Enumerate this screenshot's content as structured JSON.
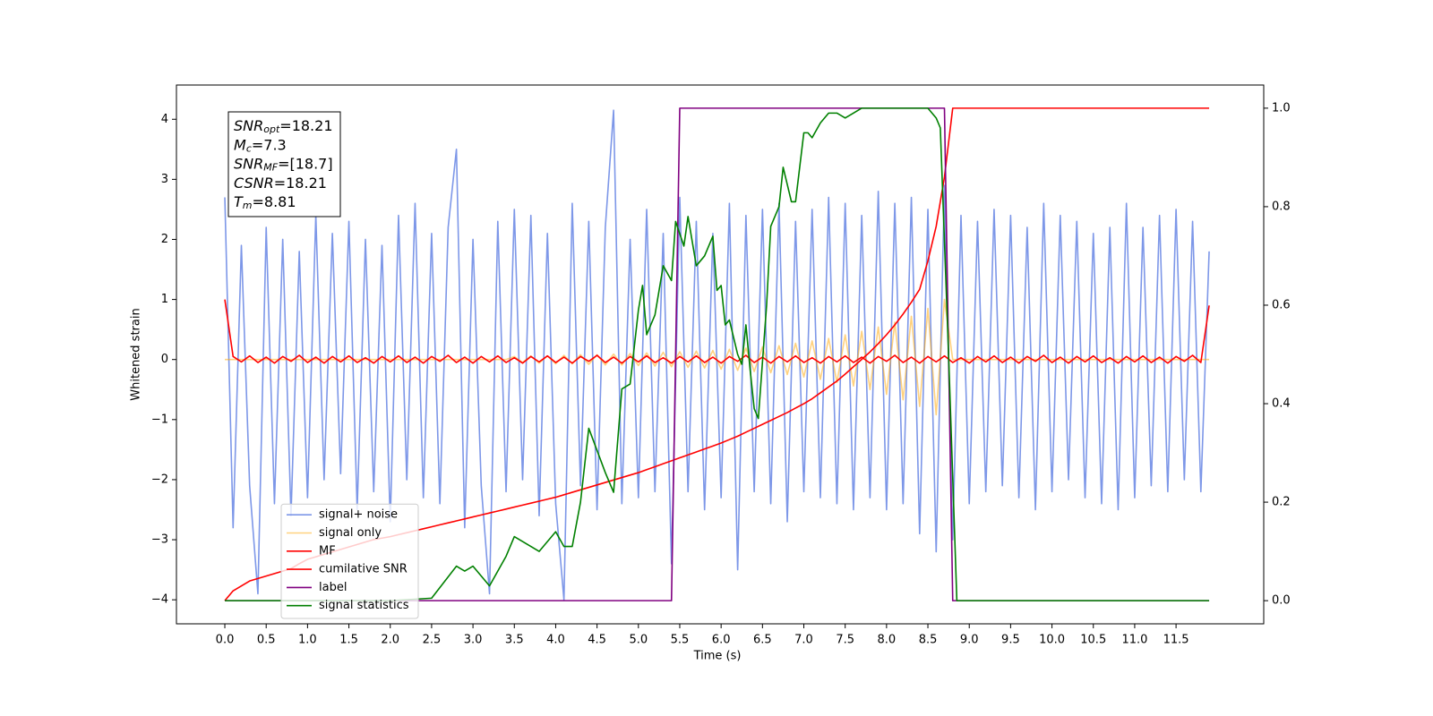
{
  "chart_data": {
    "type": "line",
    "xlabel": "Time (s)",
    "ylabel": "Whitened strain",
    "x": [
      0,
      0.1,
      0.2,
      0.3,
      0.4,
      0.5,
      0.6,
      0.7,
      0.8,
      0.9,
      1,
      1.1,
      1.2,
      1.3,
      1.4,
      1.5,
      1.6,
      1.7,
      1.8,
      1.9,
      2,
      2.1,
      2.2,
      2.3,
      2.4,
      2.5,
      2.6,
      2.7,
      2.8,
      2.9,
      3,
      3.1,
      3.2,
      3.3,
      3.4,
      3.5,
      3.6,
      3.7,
      3.8,
      3.9,
      4,
      4.1,
      4.2,
      4.3,
      4.4,
      4.5,
      4.6,
      4.7,
      4.8,
      4.9,
      5,
      5.1,
      5.2,
      5.3,
      5.4,
      5.5,
      5.6,
      5.7,
      5.8,
      5.9,
      6,
      6.1,
      6.2,
      6.3,
      6.4,
      6.5,
      6.6,
      6.7,
      6.8,
      6.9,
      7,
      7.1,
      7.2,
      7.3,
      7.4,
      7.5,
      7.6,
      7.7,
      7.8,
      7.9,
      8,
      8.1,
      8.2,
      8.3,
      8.4,
      8.5,
      8.6,
      8.7,
      8.8,
      8.9,
      9,
      9.1,
      9.2,
      9.3,
      9.4,
      9.5,
      9.6,
      9.7,
      9.8,
      9.9,
      10,
      10.1,
      10.2,
      10.3,
      10.4,
      10.5,
      10.6,
      10.7,
      10.8,
      10.9,
      11,
      11.1,
      11.2,
      11.3,
      11.4,
      11.5,
      11.6,
      11.7,
      11.8,
      11.9
    ],
    "series": [
      {
        "name": "signal+ noise",
        "color": "#6f8ce6",
        "alpha": 0.9,
        "values": [
          2.7,
          -2.8,
          1.9,
          -2.1,
          -3.9,
          2.2,
          -2.4,
          2.0,
          -2.6,
          1.8,
          -2.3,
          2.4,
          -2.0,
          2.1,
          -1.9,
          2.3,
          -2.5,
          2.0,
          -2.2,
          1.9,
          -2.7,
          2.4,
          -2.0,
          2.6,
          -2.3,
          2.1,
          -2.4,
          2.2,
          3.5,
          -2.8,
          2.0,
          -2.1,
          -3.9,
          2.3,
          -2.2,
          2.5,
          -2.0,
          2.4,
          -2.6,
          2.1,
          -2.4,
          -4.0,
          2.6,
          -2.1,
          2.3,
          -2.5,
          2.2,
          4.15,
          -2.4,
          2.0,
          -2.3,
          2.5,
          -2.2,
          2.1,
          -3.4,
          2.7,
          -2.2,
          2.3,
          -2.5,
          2.1,
          -2.3,
          2.6,
          -3.5,
          2.4,
          -2.2,
          2.5,
          -2.4,
          2.6,
          -2.7,
          2.3,
          -2.2,
          2.5,
          -2.3,
          2.7,
          -2.4,
          2.6,
          -2.5,
          2.4,
          -2.3,
          2.8,
          -2.5,
          2.6,
          -2.4,
          2.7,
          -2.9,
          2.5,
          -3.2,
          2.9,
          -3.0,
          2.4,
          -2.4,
          2.3,
          -2.2,
          2.5,
          -2.1,
          2.4,
          -2.3,
          2.2,
          -2.5,
          2.6,
          -2.2,
          2.4,
          -2.0,
          2.3,
          -2.3,
          2.1,
          -2.4,
          2.2,
          -2.5,
          2.6,
          -2.3,
          2.2,
          -2.1,
          2.4,
          -2.2,
          2.5,
          -2.0,
          2.3,
          -2.2,
          1.8
        ]
      },
      {
        "name": "signal only",
        "color": "#ffa500",
        "alpha": 0.5,
        "values": [
          0,
          0,
          0,
          0,
          0,
          0,
          0,
          0,
          0,
          0,
          0,
          0,
          0,
          0,
          0,
          0,
          0,
          0,
          0,
          0,
          0,
          0,
          0,
          0,
          0,
          0,
          0,
          0,
          0,
          0,
          0,
          0,
          0,
          0,
          0,
          0.05,
          -0.05,
          0.06,
          -0.06,
          0.06,
          -0.07,
          0.07,
          -0.07,
          0.08,
          -0.08,
          0.08,
          -0.09,
          0.09,
          -0.09,
          0.1,
          -0.1,
          0.11,
          -0.11,
          0.12,
          -0.12,
          0.13,
          -0.13,
          0.14,
          -0.14,
          0.15,
          -0.16,
          0.17,
          -0.18,
          0.19,
          -0.2,
          0.21,
          -0.22,
          0.23,
          -0.25,
          0.27,
          -0.29,
          0.31,
          -0.33,
          0.35,
          -0.38,
          0.41,
          -0.44,
          0.47,
          -0.5,
          0.54,
          -0.58,
          0.62,
          -0.67,
          0.72,
          -0.78,
          0.85,
          -0.92,
          1.0,
          0,
          0,
          0,
          0,
          0,
          0,
          0,
          0,
          0,
          0,
          0,
          0,
          0,
          0,
          0,
          0,
          0,
          0,
          0,
          0,
          0,
          0,
          0,
          0,
          0,
          0,
          0,
          0,
          0,
          0,
          0,
          0
        ]
      },
      {
        "name": "MF",
        "color": "#ff0000",
        "alpha": 1,
        "values": [
          1.0,
          0.05,
          -0.04,
          0.06,
          -0.05,
          0.04,
          -0.06,
          0.05,
          -0.03,
          0.07,
          -0.05,
          0.04,
          -0.06,
          0.05,
          -0.04,
          0.06,
          -0.05,
          0.03,
          -0.06,
          0.05,
          -0.04,
          0.06,
          -0.05,
          0.04,
          -0.06,
          0.05,
          -0.03,
          0.07,
          -0.05,
          0.04,
          -0.06,
          0.05,
          -0.04,
          0.06,
          -0.05,
          0.03,
          -0.06,
          0.05,
          -0.04,
          0.06,
          -0.05,
          0.04,
          -0.06,
          0.05,
          -0.03,
          0.07,
          -0.05,
          0.04,
          -0.06,
          0.05,
          -0.04,
          0.06,
          -0.05,
          0.03,
          -0.06,
          0.05,
          -0.04,
          0.06,
          -0.05,
          0.04,
          -0.06,
          0.05,
          -0.03,
          0.07,
          -0.05,
          0.04,
          -0.06,
          0.05,
          -0.04,
          0.06,
          -0.05,
          0.03,
          -0.06,
          0.05,
          -0.04,
          0.06,
          -0.05,
          0.04,
          -0.06,
          0.05,
          -0.03,
          0.07,
          -0.05,
          0.04,
          -0.06,
          0.05,
          -0.04,
          0.06,
          -0.05,
          0.03,
          -0.06,
          0.05,
          -0.04,
          0.06,
          -0.05,
          0.04,
          -0.06,
          0.05,
          -0.03,
          0.07,
          -0.05,
          0.04,
          -0.06,
          0.05,
          -0.04,
          0.06,
          -0.05,
          0.03,
          -0.06,
          0.05,
          -0.04,
          0.06,
          -0.05,
          0.04,
          -0.06,
          0.05,
          -0.03,
          0.07,
          -0.05,
          0.9
        ]
      },
      {
        "name": "cumilative SNR",
        "color": "#ff0000",
        "alpha": 1,
        "axis": "y2",
        "values": [
          0.0,
          0.02,
          0.03,
          0.04,
          0.045,
          0.05,
          0.055,
          0.06,
          0.065,
          0.075,
          0.084,
          0.089,
          0.094,
          0.099,
          0.104,
          0.109,
          0.114,
          0.119,
          0.124,
          0.127,
          0.13,
          0.134,
          0.138,
          0.142,
          0.146,
          0.15,
          0.154,
          0.158,
          0.162,
          0.166,
          0.17,
          0.174,
          0.178,
          0.182,
          0.186,
          0.19,
          0.194,
          0.198,
          0.202,
          0.206,
          0.21,
          0.215,
          0.22,
          0.225,
          0.23,
          0.235,
          0.24,
          0.245,
          0.25,
          0.255,
          0.26,
          0.266,
          0.272,
          0.278,
          0.284,
          0.29,
          0.296,
          0.302,
          0.308,
          0.314,
          0.32,
          0.327,
          0.334,
          0.342,
          0.35,
          0.358,
          0.366,
          0.374,
          0.382,
          0.391,
          0.4,
          0.41,
          0.422,
          0.434,
          0.446,
          0.46,
          0.475,
          0.49,
          0.505,
          0.522,
          0.54,
          0.56,
          0.582,
          0.606,
          0.632,
          0.69,
          0.76,
          0.86,
          1.0,
          1.0,
          1.0,
          1.0,
          1.0,
          1.0,
          1.0,
          1.0,
          1.0,
          1.0,
          1.0,
          1.0,
          1.0,
          1.0,
          1.0,
          1.0,
          1.0,
          1.0,
          1.0,
          1.0,
          1.0,
          1.0,
          1.0,
          1.0,
          1.0,
          1.0,
          1.0,
          1.0,
          1.0,
          1.0,
          1.0,
          1.0
        ]
      },
      {
        "name": "label",
        "color": "#800080",
        "alpha": 1,
        "axis": "y2",
        "values": [
          0,
          0,
          0,
          0,
          0,
          0,
          0,
          0,
          0,
          0,
          0,
          0,
          0,
          0,
          0,
          0,
          0,
          0,
          0,
          0,
          0,
          0,
          0,
          0,
          0,
          0,
          0,
          0,
          0,
          0,
          0,
          0,
          0,
          0,
          0,
          0,
          0,
          0,
          0,
          0,
          0,
          0,
          0,
          0,
          0,
          0,
          0,
          0,
          0,
          0,
          0,
          0,
          0,
          0,
          0,
          1,
          1,
          1,
          1,
          1,
          1,
          1,
          1,
          1,
          1,
          1,
          1,
          1,
          1,
          1,
          1,
          1,
          1,
          1,
          1,
          1,
          1,
          1,
          1,
          1,
          1,
          1,
          1,
          1,
          1,
          1,
          1,
          1,
          0,
          0,
          0,
          0,
          0,
          0,
          0,
          0,
          0,
          0,
          0,
          0,
          0,
          0,
          0,
          0,
          0,
          0,
          0,
          0,
          0,
          0,
          0,
          0,
          0,
          0,
          0,
          0,
          0,
          0,
          0,
          0
        ]
      },
      {
        "name": "signal statistics",
        "color": "#008000",
        "alpha": 1,
        "axis": "y2",
        "x": [
          0,
          1,
          2,
          2.5,
          2.8,
          2.9,
          3.0,
          3.2,
          3.4,
          3.5,
          3.7,
          3.8,
          4.0,
          4.1,
          4.2,
          4.3,
          4.4,
          4.6,
          4.7,
          4.8,
          4.9,
          5.0,
          5.05,
          5.1,
          5.2,
          5.3,
          5.4,
          5.45,
          5.55,
          5.6,
          5.7,
          5.8,
          5.9,
          5.95,
          6.0,
          6.05,
          6.1,
          6.2,
          6.25,
          6.3,
          6.35,
          6.4,
          6.45,
          6.55,
          6.6,
          6.7,
          6.75,
          6.85,
          6.9,
          7.0,
          7.05,
          7.1,
          7.2,
          7.3,
          7.4,
          7.5,
          7.7,
          8.0,
          8.5,
          8.6,
          8.65,
          8.75,
          8.85,
          11.9
        ],
        "values": [
          0,
          0,
          0,
          0.005,
          0.07,
          0.06,
          0.07,
          0.03,
          0.09,
          0.13,
          0.11,
          0.1,
          0.14,
          0.11,
          0.11,
          0.2,
          0.35,
          0.26,
          0.22,
          0.43,
          0.44,
          0.59,
          0.64,
          0.54,
          0.58,
          0.68,
          0.65,
          0.77,
          0.72,
          0.78,
          0.68,
          0.7,
          0.74,
          0.63,
          0.64,
          0.56,
          0.57,
          0.5,
          0.48,
          0.56,
          0.47,
          0.39,
          0.37,
          0.6,
          0.76,
          0.8,
          0.88,
          0.81,
          0.81,
          0.95,
          0.95,
          0.94,
          0.97,
          0.99,
          0.99,
          0.98,
          1.0,
          1.0,
          1.0,
          0.98,
          0.96,
          0.5,
          0.0,
          0.0
        ]
      }
    ],
    "xlim": [
      -0.585,
      12.56
    ],
    "ylim": [
      -4.4,
      4.57
    ],
    "y2lim": [
      -0.047,
      1.047
    ],
    "xticks": [
      {
        "value": 0,
        "label": "0.0"
      },
      0.5,
      {
        "value": 1,
        "label": "1.0"
      },
      1.5,
      {
        "value": 2,
        "label": "2.0"
      },
      2.5,
      {
        "value": 3,
        "label": "3.0"
      },
      3.5,
      {
        "value": 4,
        "label": "4.0"
      },
      4.5,
      {
        "value": 5,
        "label": "5.0"
      },
      5.5,
      {
        "value": 6,
        "label": "6.0"
      },
      6.5,
      {
        "value": 7,
        "label": "7.0"
      },
      7.5,
      {
        "value": 8,
        "label": "8.0"
      },
      8.5,
      {
        "value": 9,
        "label": "9.0"
      },
      9.5,
      {
        "value": 10,
        "label": "10.0"
      },
      10.5,
      {
        "value": 11,
        "label": "11.0"
      },
      11.5
    ],
    "yticks": [
      {
        "value": -4,
        "label": "−4"
      },
      {
        "value": -3,
        "label": "−3"
      },
      {
        "value": -2,
        "label": "−2"
      },
      {
        "value": -1,
        "label": "−1"
      },
      0,
      1,
      2,
      3,
      4
    ],
    "y2ticks": [
      {
        "value": 0,
        "label": "0.0"
      },
      0.2,
      0.4,
      0.6,
      0.8,
      {
        "value": 1,
        "label": "1.0"
      }
    ],
    "grid": false,
    "legend": "lower left",
    "annotations": [
      {
        "symbol": "SNR",
        "sub": "opt",
        "text": "=18.21"
      },
      {
        "symbol": "M",
        "sub": "c",
        "text": "=7.3"
      },
      {
        "symbol": "SNR",
        "sub": "MF",
        "text": "=[18.7]"
      },
      {
        "symbol": "CSNR",
        "text": "=18.21"
      },
      {
        "symbol": "T",
        "sub": "m",
        "text": "=8.81"
      }
    ]
  }
}
